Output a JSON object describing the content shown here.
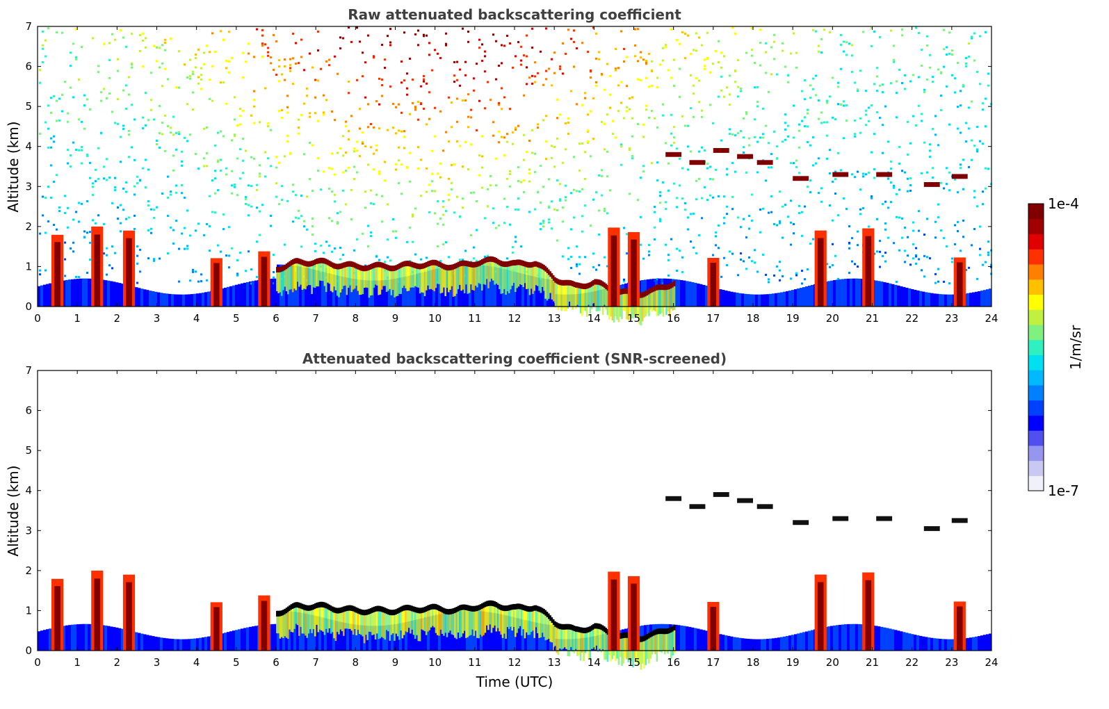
{
  "colorbar": {
    "max_label": "1e-4",
    "min_label": "1e-7",
    "units_label": "1/m/sr",
    "colors": [
      "#f0f0fa",
      "#c8c8f0",
      "#9696ee",
      "#5050f0",
      "#0000ff",
      "#0040ff",
      "#0080ff",
      "#00b8ff",
      "#00e0f0",
      "#30f0c0",
      "#80f080",
      "#c0f040",
      "#ffff00",
      "#ffc000",
      "#ff8000",
      "#ff3000",
      "#e00000",
      "#a00000",
      "#800000"
    ]
  },
  "chart_data": [
    {
      "type": "heatmap",
      "title": "Raw attenuated backscattering coefficient",
      "xlabel": "",
      "ylabel": "Altitude (km)",
      "xlim": [
        0,
        24
      ],
      "ylim": [
        0,
        7
      ],
      "x_ticks": [
        "0",
        "1",
        "2",
        "3",
        "4",
        "5",
        "6",
        "7",
        "8",
        "9",
        "10",
        "11",
        "12",
        "13",
        "14",
        "15",
        "16",
        "17",
        "18",
        "19",
        "20",
        "21",
        "22",
        "23",
        "24"
      ],
      "y_ticks": [
        "0",
        "1",
        "2",
        "3",
        "4",
        "5",
        "6",
        "7"
      ],
      "features": {
        "cloud_layer_km": [
          [
            6.0,
            0.95
          ],
          [
            6.5,
            1.1
          ],
          [
            7.0,
            1.12
          ],
          [
            7.5,
            1.05
          ],
          [
            8.0,
            1.0
          ],
          [
            8.5,
            1.0
          ],
          [
            9.0,
            1.0
          ],
          [
            9.5,
            1.05
          ],
          [
            10.0,
            1.05
          ],
          [
            10.5,
            1.0
          ],
          [
            11.0,
            1.1
          ],
          [
            11.5,
            1.15
          ],
          [
            12.0,
            1.05
          ],
          [
            12.5,
            1.1
          ],
          [
            13.0,
            0.7
          ],
          [
            13.5,
            0.5
          ],
          [
            14.0,
            0.6
          ],
          [
            14.5,
            0.4
          ],
          [
            15.0,
            0.3
          ],
          [
            15.5,
            0.4
          ],
          [
            16.0,
            0.6
          ]
        ],
        "elevated_layers_km": [
          [
            16.0,
            3.8
          ],
          [
            16.6,
            3.6
          ],
          [
            17.2,
            3.9
          ],
          [
            17.8,
            3.75
          ],
          [
            18.3,
            3.6
          ],
          [
            19.2,
            3.2
          ],
          [
            20.2,
            3.3
          ],
          [
            21.3,
            3.3
          ],
          [
            22.5,
            3.05
          ],
          [
            23.2,
            3.25
          ]
        ],
        "precipitation_columns_utc": [
          0.5,
          1.5,
          2.3,
          4.5,
          5.7,
          14.5,
          15.0,
          17.0,
          19.7,
          20.9,
          23.2
        ],
        "noise_intensity_peak_utc": 10.0
      }
    },
    {
      "type": "heatmap",
      "title": "Attenuated backscattering coefficient (SNR-screened)",
      "xlabel": "Time (UTC)",
      "ylabel": "Altitude (km)",
      "xlim": [
        0,
        24
      ],
      "ylim": [
        0,
        7
      ],
      "x_ticks": [
        "0",
        "1",
        "2",
        "3",
        "4",
        "5",
        "6",
        "7",
        "8",
        "9",
        "10",
        "11",
        "12",
        "13",
        "14",
        "15",
        "16",
        "17",
        "18",
        "19",
        "20",
        "21",
        "22",
        "23",
        "24"
      ],
      "y_ticks": [
        "0",
        "1",
        "2",
        "3",
        "4",
        "5",
        "6",
        "7"
      ],
      "features": {
        "cloud_layer_km": [
          [
            6.0,
            0.95
          ],
          [
            6.5,
            1.1
          ],
          [
            7.0,
            1.12
          ],
          [
            7.5,
            1.05
          ],
          [
            8.0,
            1.0
          ],
          [
            8.5,
            1.0
          ],
          [
            9.0,
            1.0
          ],
          [
            9.5,
            1.05
          ],
          [
            10.0,
            1.05
          ],
          [
            10.5,
            1.0
          ],
          [
            11.0,
            1.1
          ],
          [
            11.5,
            1.15
          ],
          [
            12.0,
            1.05
          ],
          [
            12.5,
            1.1
          ],
          [
            13.0,
            0.7
          ],
          [
            13.5,
            0.5
          ],
          [
            14.0,
            0.6
          ],
          [
            14.5,
            0.4
          ],
          [
            15.0,
            0.3
          ],
          [
            15.5,
            0.4
          ],
          [
            16.0,
            0.6
          ]
        ],
        "elevated_layers_km": [
          [
            16.0,
            3.8
          ],
          [
            16.6,
            3.6
          ],
          [
            17.2,
            3.9
          ],
          [
            17.8,
            3.75
          ],
          [
            18.3,
            3.6
          ],
          [
            19.2,
            3.2
          ],
          [
            20.2,
            3.3
          ],
          [
            21.3,
            3.3
          ],
          [
            22.5,
            3.05
          ],
          [
            23.2,
            3.25
          ]
        ],
        "precipitation_columns_utc": [
          0.5,
          1.5,
          2.3,
          4.5,
          5.7,
          14.5,
          15.0,
          17.0,
          19.7,
          20.9,
          23.2
        ]
      }
    }
  ]
}
